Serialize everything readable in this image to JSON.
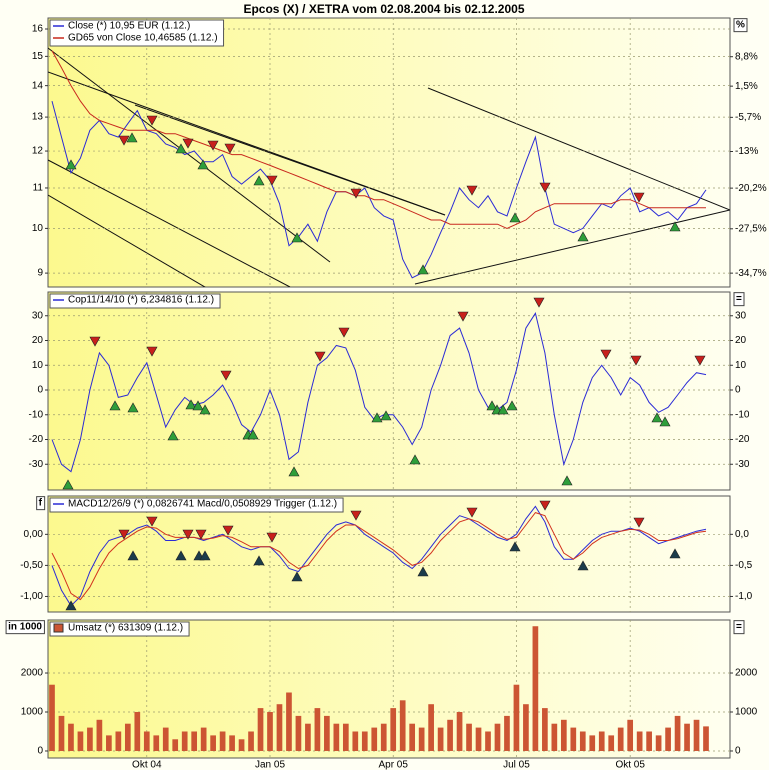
{
  "chart_data": [
    {
      "type": "line",
      "title": "Epcos (X) / XETRA vom 02.08.2004 bis 02.12.2005",
      "log": true,
      "ylim": [
        8.71,
        16.42
      ],
      "yticks": [
        9,
        10,
        11,
        12,
        13,
        14,
        15,
        16
      ],
      "y2log": true,
      "y2lim": [
        -36.8,
        19.2
      ],
      "y2ticks": [
        {
          "value": 8.8,
          "label": "8,8%"
        },
        {
          "value": 1.5,
          "label": "1,5%"
        },
        {
          "value": -5.7,
          "label": "-5,7%"
        },
        {
          "value": -13,
          "label": "-13%"
        },
        {
          "value": -20.2,
          "label": "-20,2%"
        },
        {
          "value": -27.5,
          "label": "-27,5%"
        },
        {
          "value": -34.7,
          "label": "-34,7%"
        }
      ],
      "y2_unit": "%",
      "grid": true,
      "series": [
        {
          "name": "Close (*) 10,95 EUR (1.12.)",
          "color": "#2b2bd6",
          "values": [
            13.5,
            12.4,
            11.4,
            11.8,
            12.6,
            12.9,
            12.5,
            12.4,
            12.8,
            13.2,
            12.6,
            12.5,
            12.2,
            12.1,
            11.9,
            12.0,
            11.7,
            11.7,
            11.9,
            11.3,
            11.1,
            11.3,
            11.5,
            11.2,
            10.6,
            9.6,
            9.8,
            10.1,
            9.7,
            10.4,
            10.9,
            10.9,
            10.8,
            11.0,
            10.5,
            10.3,
            10.2,
            9.3,
            8.9,
            9.0,
            9.4,
            9.9,
            10.4,
            11.0,
            10.7,
            10.5,
            10.8,
            10.4,
            10.3,
            11.0,
            11.7,
            12.4,
            11.0,
            10.1,
            10.0,
            9.9,
            10.0,
            10.3,
            10.6,
            10.5,
            10.8,
            11.0,
            10.4,
            10.5,
            10.3,
            10.4,
            10.2,
            10.5,
            10.6,
            10.95
          ]
        },
        {
          "name": "GD65 von Close 10,46585 (1.12.)",
          "color": "#c8281e",
          "values": [
            15.2,
            14.6,
            14.0,
            13.5,
            13.1,
            12.9,
            12.8,
            12.7,
            12.6,
            12.6,
            12.6,
            12.6,
            12.5,
            12.5,
            12.4,
            12.3,
            12.2,
            12.1,
            12.0,
            11.9,
            11.9,
            11.8,
            11.7,
            11.6,
            11.5,
            11.4,
            11.3,
            11.2,
            11.1,
            11.0,
            10.9,
            10.9,
            10.8,
            10.8,
            10.7,
            10.7,
            10.6,
            10.5,
            10.4,
            10.3,
            10.2,
            10.2,
            10.1,
            10.1,
            10.1,
            10.1,
            10.1,
            10.1,
            10.0,
            10.1,
            10.2,
            10.4,
            10.5,
            10.6,
            10.6,
            10.6,
            10.6,
            10.6,
            10.6,
            10.6,
            10.7,
            10.7,
            10.6,
            10.5,
            10.5,
            10.5,
            10.5,
            10.5,
            10.5,
            10.5
          ]
        }
      ]
    },
    {
      "type": "line",
      "ylim": [
        -40.4,
        39.6
      ],
      "yticks": [
        30,
        20,
        10,
        0,
        -10,
        -20,
        -30
      ],
      "y2lim": [
        -40.4,
        39.6
      ],
      "y2ticks": [
        30,
        20,
        10,
        0,
        -10,
        -20,
        -30
      ],
      "y2_unit": "=",
      "grid": true,
      "series": [
        {
          "name": "Cop11/14/10 (*) 6,234816 (1.12.)",
          "color": "#2b2bd6",
          "values": [
            -20,
            -30,
            -33,
            -20,
            0,
            15,
            10,
            -3,
            -2,
            5,
            11,
            -2,
            -15,
            -8,
            -3,
            -6,
            -5,
            -2,
            2,
            -5,
            -14,
            -17,
            -10,
            0,
            -10,
            -28,
            -25,
            -5,
            10,
            13,
            18,
            17,
            8,
            -7,
            -12,
            -10,
            -10,
            -15,
            -22,
            -15,
            0,
            10,
            22,
            25,
            15,
            0,
            -7,
            -8,
            -5,
            8,
            25,
            31,
            15,
            -10,
            -30,
            -20,
            -5,
            5,
            10,
            5,
            -2,
            5,
            2,
            -5,
            -9,
            -7,
            -2,
            3,
            7,
            6.23
          ]
        }
      ]
    },
    {
      "type": "line",
      "ylim": [
        -1.25,
        0.617
      ],
      "y_unit": "f",
      "yticks": [
        {
          "value": 0,
          "label": "0,00"
        },
        {
          "value": -0.5,
          "label": "-0,50"
        },
        {
          "value": -1,
          "label": "-1,00"
        }
      ],
      "y2lim": [
        -1.25,
        0.617
      ],
      "y2ticks": [
        {
          "value": 0,
          "label": "0,0"
        },
        {
          "value": -0.5,
          "label": "-0,5"
        },
        {
          "value": -1,
          "label": "-1,0"
        }
      ],
      "grid": true,
      "series": [
        {
          "name": "MACD12/26/9 (*) 0,0826741 Macd/0,0508929 Trigger (1.12.)",
          "color": "#2b2bd6",
          "values": [
            -0.5,
            -0.9,
            -1.15,
            -1.0,
            -0.6,
            -0.3,
            -0.1,
            -0.05,
            0.0,
            0.1,
            0.15,
            0.05,
            -0.1,
            -0.1,
            -0.05,
            -0.05,
            -0.1,
            -0.05,
            0.0,
            -0.1,
            -0.2,
            -0.25,
            -0.2,
            -0.2,
            -0.35,
            -0.55,
            -0.6,
            -0.4,
            -0.2,
            0.0,
            0.15,
            0.2,
            0.15,
            0.0,
            -0.1,
            -0.2,
            -0.3,
            -0.45,
            -0.55,
            -0.4,
            -0.2,
            0.0,
            0.15,
            0.3,
            0.25,
            0.15,
            0.05,
            -0.05,
            -0.1,
            0.0,
            0.25,
            0.45,
            0.2,
            -0.2,
            -0.4,
            -0.4,
            -0.25,
            -0.1,
            0.0,
            0.05,
            0.05,
            0.1,
            0.05,
            -0.05,
            -0.15,
            -0.1,
            -0.05,
            0.0,
            0.05,
            0.0826741
          ]
        },
        {
          "color": "#d2321e",
          "values": [
            -0.3,
            -0.6,
            -0.95,
            -1.05,
            -0.85,
            -0.55,
            -0.3,
            -0.15,
            -0.05,
            0.05,
            0.12,
            0.1,
            0.0,
            -0.05,
            -0.05,
            -0.05,
            -0.08,
            -0.06,
            -0.02,
            -0.05,
            -0.12,
            -0.2,
            -0.2,
            -0.2,
            -0.28,
            -0.45,
            -0.55,
            -0.5,
            -0.3,
            -0.1,
            0.05,
            0.15,
            0.15,
            0.05,
            -0.05,
            -0.15,
            -0.25,
            -0.38,
            -0.5,
            -0.45,
            -0.3,
            -0.1,
            0.05,
            0.2,
            0.25,
            0.2,
            0.1,
            0.0,
            -0.08,
            -0.05,
            0.15,
            0.35,
            0.3,
            0.0,
            -0.3,
            -0.4,
            -0.3,
            -0.15,
            -0.05,
            0.0,
            0.05,
            0.08,
            0.07,
            0.0,
            -0.1,
            -0.1,
            -0.07,
            -0.02,
            0.03,
            0.0508929
          ]
        }
      ]
    },
    {
      "type": "bar",
      "ylim": [
        -180,
        3360
      ],
      "y_unit": "in 1000",
      "yticks": [
        2000,
        1000,
        0
      ],
      "y2lim": [
        -180,
        3360
      ],
      "y2ticks": [
        2000,
        1000,
        0
      ],
      "y2_unit": "=",
      "grid": true,
      "categories": [
        null,
        null,
        null,
        null,
        null,
        null,
        null,
        null,
        null,
        null,
        "Okt 04",
        null,
        null,
        null,
        null,
        null,
        null,
        null,
        null,
        null,
        null,
        null,
        null,
        "Jan 05",
        null,
        null,
        null,
        null,
        null,
        null,
        null,
        null,
        null,
        null,
        null,
        null,
        "Apr 05",
        null,
        null,
        null,
        null,
        null,
        null,
        null,
        null,
        null,
        null,
        null,
        null,
        "Jul 05",
        null,
        null,
        null,
        null,
        null,
        null,
        null,
        null,
        null,
        null,
        null,
        "Okt 05",
        null,
        null,
        null,
        null,
        null,
        null,
        null,
        null
      ],
      "series": [
        {
          "name": "Umsatz (*) 631309 (1.12.)",
          "color": "#cc5533",
          "values": [
            1700,
            900,
            700,
            500,
            600,
            800,
            400,
            500,
            700,
            1000,
            500,
            400,
            600,
            300,
            500,
            500,
            600,
            400,
            500,
            400,
            300,
            500,
            1100,
            1000,
            1200,
            1500,
            900,
            700,
            1100,
            900,
            700,
            700,
            500,
            500,
            600,
            700,
            1100,
            1300,
            700,
            600,
            1200,
            600,
            800,
            1000,
            700,
            600,
            500,
            700,
            900,
            1700,
            1200,
            3200,
            1100,
            700,
            800,
            600,
            500,
            400,
            500,
            400,
            600,
            800,
            500,
            500,
            400,
            600,
            900,
            700,
            800,
            631
          ]
        }
      ]
    }
  ]
}
